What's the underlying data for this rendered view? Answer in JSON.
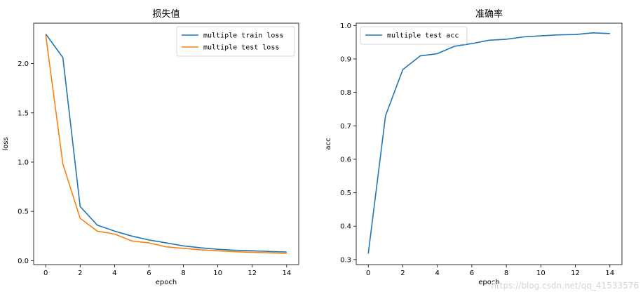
{
  "chart_data": [
    {
      "type": "line",
      "title": "损失值",
      "xlabel": "epoch",
      "ylabel": "loss",
      "xlim": [
        -0.7,
        14.7
      ],
      "ylim": [
        -0.04,
        2.41
      ],
      "x_ticks": [
        0,
        2,
        4,
        6,
        8,
        10,
        12,
        14
      ],
      "y_ticks": [
        0.0,
        0.5,
        1.0,
        1.5,
        2.0
      ],
      "y_tick_labels": [
        "0.0",
        "0.5",
        "1.0",
        "1.5",
        "2.0"
      ],
      "legend_loc": "upper right",
      "x": [
        0,
        1,
        2,
        3,
        4,
        5,
        6,
        7,
        8,
        9,
        10,
        11,
        12,
        13,
        14
      ],
      "series": [
        {
          "name": "multiple train loss",
          "color": "#1f77b4",
          "values": [
            2.3,
            2.06,
            0.55,
            0.36,
            0.3,
            0.25,
            0.21,
            0.18,
            0.15,
            0.13,
            0.115,
            0.105,
            0.1,
            0.093,
            0.088
          ]
        },
        {
          "name": "multiple test loss",
          "color": "#ff7f0e",
          "values": [
            2.29,
            0.98,
            0.43,
            0.3,
            0.27,
            0.2,
            0.18,
            0.14,
            0.125,
            0.11,
            0.1,
            0.09,
            0.085,
            0.08,
            0.075
          ]
        }
      ]
    },
    {
      "type": "line",
      "title": "准确率",
      "xlabel": "epoch",
      "ylabel": "acc",
      "xlim": [
        -0.7,
        14.7
      ],
      "ylim": [
        0.285,
        1.007
      ],
      "x_ticks": [
        0,
        2,
        4,
        6,
        8,
        10,
        12,
        14
      ],
      "y_ticks": [
        0.3,
        0.4,
        0.5,
        0.6,
        0.7,
        0.8,
        0.9,
        1.0
      ],
      "y_tick_labels": [
        "0.3",
        "0.4",
        "0.5",
        "0.6",
        "0.7",
        "0.8",
        "0.9",
        "1.0"
      ],
      "legend_loc": "upper left",
      "x": [
        0,
        1,
        2,
        3,
        4,
        5,
        6,
        7,
        8,
        9,
        10,
        11,
        12,
        13,
        14
      ],
      "series": [
        {
          "name": "multiple test acc",
          "color": "#1f77b4",
          "values": [
            0.318,
            0.73,
            0.868,
            0.909,
            0.916,
            0.938,
            0.946,
            0.956,
            0.959,
            0.966,
            0.969,
            0.972,
            0.973,
            0.978,
            0.976
          ]
        }
      ]
    }
  ],
  "watermark": "https://blog.csdn.net/qq_41533576"
}
